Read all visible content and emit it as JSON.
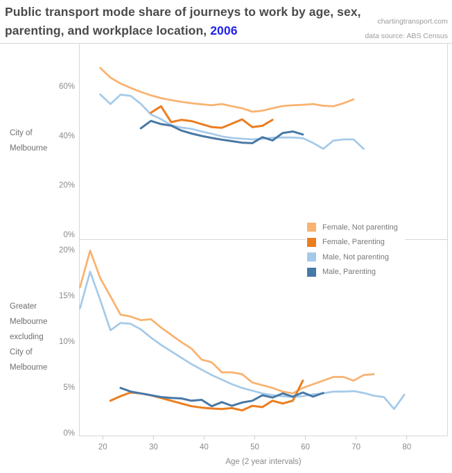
{
  "header": {
    "title_line1": "Public transport mode share of journeys to work by age, sex,",
    "title_line2": "parenting, and workplace location, ",
    "year": "2006",
    "year_color": "#2323e8",
    "source_line1": "chartingtransport.com",
    "source_line2": "data source: ABS Census"
  },
  "colors": {
    "female_np": "#f9b26f",
    "female_p": "#ec7d1f",
    "male_np": "#a5cae9",
    "male_p": "#4878a6",
    "border": "#d6d6d6",
    "tick": "#c9c9c9",
    "tick_label": "#8a8a8a"
  },
  "legend": {
    "items": [
      {
        "key": "female_np",
        "label": "Female, Not parenting"
      },
      {
        "key": "female_p",
        "label": "Female, Parenting"
      },
      {
        "key": "male_np",
        "label": "Male, Not parenting"
      },
      {
        "key": "male_p",
        "label": "Male, Parenting"
      }
    ]
  },
  "chart_data": {
    "type": "line",
    "x_axis": {
      "title": "Age (2 year intervals)",
      "ticks": [
        20,
        30,
        40,
        50,
        60,
        70,
        80
      ],
      "age_step": 2,
      "range": [
        14,
        81
      ]
    },
    "panels": [
      {
        "row_label": "City of\nMelbourne",
        "y_tick_labels": [
          "0%",
          "20%",
          "40%",
          "60%"
        ],
        "y_tick_values": [
          0,
          20,
          40,
          60
        ],
        "y_unit": "percent",
        "series": [
          {
            "key": "female_np",
            "name": "Female, Not parenting",
            "age_start": 19.5,
            "values": [
              67.3,
              63.4,
              61.0,
              59.2,
              57.6,
              56.2,
              55.1,
              54.3,
              53.6,
              53.0,
              52.6,
              52.2,
              52.7,
              51.8,
              51.0,
              49.6,
              50.0,
              51.0,
              51.9,
              52.2,
              52.4,
              52.7,
              52.0,
              51.8,
              53.0,
              54.6
            ]
          },
          {
            "key": "male_np",
            "name": "Male, Not parenting",
            "age_start": 19.5,
            "values": [
              56.6,
              52.7,
              56.5,
              56.0,
              52.8,
              48.5,
              46.6,
              44.2,
              43.2,
              42.7,
              41.6,
              40.7,
              39.6,
              39.0,
              38.7,
              38.4,
              38.7,
              39.1,
              39.2,
              39.2,
              38.9,
              37.0,
              34.6,
              37.9,
              38.4,
              38.4,
              34.6
            ]
          },
          {
            "key": "female_p",
            "name": "Female, Parenting",
            "age_start": 29.5,
            "values": [
              49.2,
              51.8,
              45.4,
              46.3,
              45.8,
              44.6,
              43.4,
              43.1,
              44.8,
              46.5,
              43.4,
              43.9,
              46.3
            ]
          },
          {
            "key": "male_p",
            "name": "Male, Parenting",
            "age_start": 27.5,
            "values": [
              42.9,
              45.9,
              44.6,
              44.0,
              42.0,
              40.8,
              39.8,
              39.0,
              38.3,
              37.7,
              37.1,
              36.9,
              39.3,
              38.0,
              41.0,
              41.6,
              40.4
            ]
          }
        ]
      },
      {
        "row_label": "Greater\nMelbourne\nexcluding\nCity of\nMelbourne",
        "y_tick_labels": [
          "0%",
          "5%",
          "10%",
          "15%",
          "20%"
        ],
        "y_tick_values": [
          0,
          5,
          10,
          15,
          20
        ],
        "y_unit": "percent",
        "series": [
          {
            "key": "female_np",
            "name": "Female, Not parenting",
            "age_start": 15.5,
            "values": [
              15.9,
              19.9,
              16.9,
              14.9,
              12.9,
              12.7,
              12.3,
              12.4,
              11.5,
              10.7,
              9.9,
              9.2,
              8.0,
              7.7,
              6.6,
              6.6,
              6.4,
              5.5,
              5.2,
              4.9,
              4.5,
              4.3,
              4.9,
              5.3,
              5.7,
              6.1,
              6.1,
              5.7,
              6.3,
              6.4
            ]
          },
          {
            "key": "male_np",
            "name": "Male, Not parenting",
            "age_start": 15.5,
            "values": [
              13.6,
              17.6,
              14.5,
              11.2,
              12.0,
              11.9,
              11.3,
              10.4,
              9.6,
              8.9,
              8.2,
              7.5,
              6.9,
              6.3,
              5.8,
              5.3,
              4.9,
              4.6,
              4.3,
              4.1,
              4.0,
              3.9,
              4.0,
              4.2,
              4.3,
              4.5,
              4.5,
              4.55,
              4.35,
              4.05,
              3.9,
              2.6,
              4.15
            ]
          },
          {
            "key": "female_p",
            "name": "Female, Parenting",
            "age_start": 21.5,
            "values": [
              3.5,
              4.0,
              4.4,
              4.3,
              4.1,
              3.8,
              3.5,
              3.2,
              2.9,
              2.75,
              2.65,
              2.6,
              2.7,
              2.45,
              2.95,
              2.8,
              3.5,
              3.2,
              3.5,
              5.7
            ]
          },
          {
            "key": "male_p",
            "name": "Male, Parenting",
            "age_start": 23.5,
            "values": [
              4.9,
              4.5,
              4.3,
              4.1,
              3.9,
              3.8,
              3.75,
              3.5,
              3.6,
              2.9,
              3.35,
              2.95,
              3.3,
              3.5,
              4.1,
              3.85,
              4.3,
              3.95,
              4.4,
              3.95,
              4.35
            ]
          }
        ]
      }
    ]
  }
}
